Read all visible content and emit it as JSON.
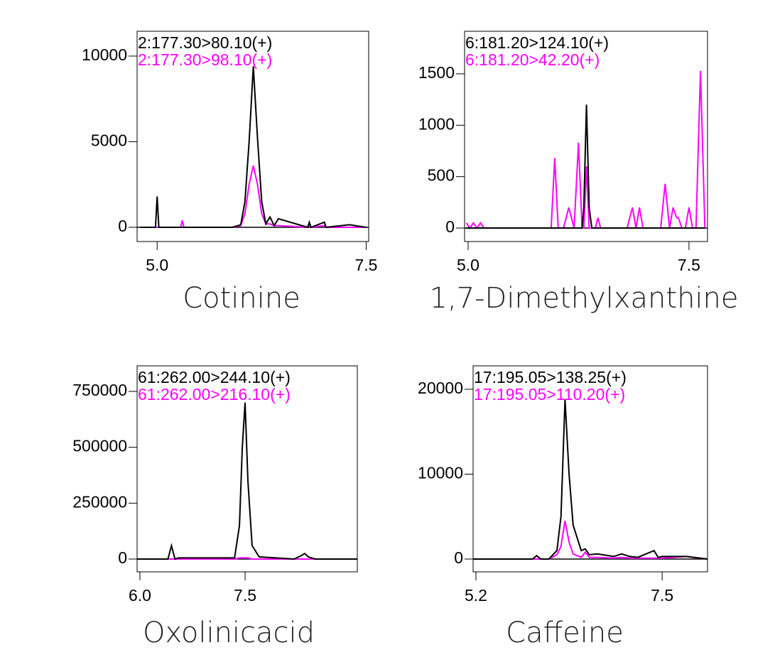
{
  "chart_data": [
    {
      "type": "line",
      "title": "Cotinine",
      "x": [
        4.8,
        4.98,
        5.0,
        5.02,
        5.28,
        5.3,
        5.32,
        5.9,
        6.0,
        6.05,
        6.1,
        6.15,
        6.2,
        6.25,
        6.3,
        6.35,
        6.4,
        6.45,
        6.8,
        6.82,
        6.84,
        7.0,
        7.02,
        7.3,
        7.5
      ],
      "series": [
        {
          "name": "2:177.30>80.10(+)",
          "color": "#000000",
          "values": [
            0,
            0,
            1800,
            0,
            0,
            0,
            0,
            0,
            150,
            1500,
            5000,
            9400,
            5200,
            1500,
            200,
            600,
            100,
            500,
            0,
            300,
            0,
            300,
            0,
            150,
            0
          ]
        },
        {
          "name": "2:177.30>98.10(+)",
          "color": "#ff00ff",
          "values": [
            0,
            0,
            0,
            0,
            0,
            400,
            0,
            0,
            100,
            800,
            2500,
            3600,
            2500,
            800,
            200,
            200,
            100,
            100,
            0,
            100,
            0,
            100,
            0,
            0,
            0
          ]
        }
      ],
      "xlim": [
        4.76,
        7.53
      ],
      "ylim": [
        -830,
        11450
      ],
      "xticks": [
        {
          "value": 5,
          "label": "5.0"
        },
        7.5
      ],
      "yticks": [
        0,
        5000,
        10000
      ]
    },
    {
      "type": "line",
      "title": "1,7-Dimethylxanthine",
      "x": [
        4.98,
        5.02,
        5.06,
        5.1,
        5.14,
        5.18,
        5.8,
        5.94,
        5.98,
        6.02,
        6.08,
        6.14,
        6.2,
        6.25,
        6.29,
        6.31,
        6.34,
        6.37,
        6.4,
        6.44,
        6.47,
        6.5,
        6.8,
        6.86,
        6.9,
        6.94,
        6.98,
        7.18,
        7.23,
        7.28,
        7.32,
        7.36,
        7.38,
        7.42,
        7.46,
        7.5,
        7.54,
        7.58,
        7.63,
        7.68
      ],
      "series": [
        {
          "name": "6:181.20>124.10(+)",
          "color": "#000000",
          "values": [
            0,
            0,
            0,
            0,
            0,
            0,
            0,
            0,
            0,
            0,
            0,
            0,
            0,
            0,
            0,
            200,
            1200,
            200,
            0,
            0,
            0,
            0,
            0,
            0,
            0,
            0,
            0,
            0,
            0,
            0,
            0,
            0,
            0,
            0,
            0,
            0,
            0,
            0,
            0,
            0
          ]
        },
        {
          "name": "6:181.20>42.20(+)",
          "color": "#ff00ff",
          "values": [
            50,
            0,
            50,
            0,
            50,
            0,
            0,
            0,
            680,
            0,
            0,
            200,
            0,
            830,
            0,
            0,
            600,
            0,
            0,
            0,
            100,
            0,
            0,
            200,
            0,
            200,
            0,
            0,
            430,
            0,
            200,
            100,
            100,
            0,
            0,
            200,
            0,
            0,
            1530,
            0
          ]
        }
      ],
      "xlim": [
        4.96,
        7.71
      ],
      "ylim": [
        -131,
        1914
      ],
      "xticks": [
        {
          "value": 5,
          "label": "5.0"
        },
        7.5
      ],
      "yticks": [
        0,
        500,
        1000,
        1500
      ]
    },
    {
      "type": "line",
      "title": "Oxolinicacid",
      "x": [
        5.96,
        6.4,
        6.45,
        6.5,
        6.55,
        6.6,
        7.0,
        7.35,
        7.42,
        7.46,
        7.5,
        7.54,
        7.6,
        7.7,
        8.2,
        8.3,
        8.35,
        8.4,
        8.5,
        9.1
      ],
      "series": [
        {
          "name": "61:262.00>244.10(+)",
          "color": "#000000",
          "values": [
            0,
            0,
            60000,
            0,
            5000,
            5000,
            5000,
            5000,
            150000,
            500000,
            700000,
            350000,
            60000,
            10000,
            0,
            15000,
            25000,
            10000,
            0,
            0
          ]
        },
        {
          "name": "61:262.00>216.10(+)",
          "color": "#ff00ff",
          "values": [
            0,
            0,
            0,
            0,
            0,
            0,
            0,
            0,
            5000,
            5000,
            5000,
            5000,
            0,
            0,
            0,
            0,
            0,
            0,
            0,
            0
          ]
        }
      ],
      "xlim": [
        5.96,
        9.1
      ],
      "ylim": [
        -57200,
        864400
      ],
      "xticks": [
        {
          "value": 6,
          "label": "6.0"
        },
        7.5
      ],
      "yticks": [
        0,
        250000,
        500000,
        750000
      ]
    },
    {
      "type": "line",
      "title": "Caffeine",
      "x": [
        5.17,
        5.9,
        5.95,
        6.0,
        6.1,
        6.2,
        6.25,
        6.3,
        6.35,
        6.4,
        6.5,
        6.55,
        6.6,
        6.7,
        6.9,
        7.0,
        7.1,
        7.2,
        7.4,
        7.45,
        7.5,
        7.8,
        8.06
      ],
      "series": [
        {
          "name": "17:195.05>138.25(+)",
          "color": "#000000",
          "values": [
            0,
            0,
            400,
            0,
            0,
            1000,
            5000,
            18800,
            10000,
            4000,
            1000,
            1200,
            500,
            600,
            300,
            600,
            300,
            200,
            1000,
            200,
            300,
            300,
            0
          ]
        },
        {
          "name": "17:195.05>110.20(+)",
          "color": "#ff00ff",
          "values": [
            0,
            0,
            0,
            0,
            0,
            500,
            1500,
            4500,
            2000,
            600,
            200,
            800,
            200,
            200,
            100,
            200,
            100,
            100,
            100,
            100,
            100,
            300,
            0
          ]
        }
      ],
      "xlim": [
        5.165,
        8.06
      ],
      "ylim": [
        -1506,
        22760
      ],
      "xticks": [
        5.2,
        7.5
      ],
      "yticks": [
        0,
        10000,
        20000
      ]
    }
  ]
}
